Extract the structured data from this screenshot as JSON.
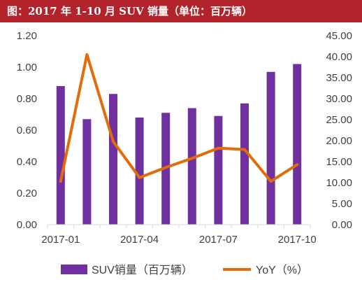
{
  "title": "图：2017 年 1-10 月 SUV 销量（单位：百万辆）",
  "chart_data": {
    "type": "bar+line",
    "categories": [
      "2017-01",
      "2017-02",
      "2017-03",
      "2017-04",
      "2017-05",
      "2017-06",
      "2017-07",
      "2017-08",
      "2017-09",
      "2017-10"
    ],
    "x_tick_labels": [
      "2017-01",
      "2017-04",
      "2017-07",
      "2017-10"
    ],
    "series": [
      {
        "name": "SUV销量（百万辆）",
        "type": "bar",
        "axis": "left",
        "values": [
          0.88,
          0.67,
          0.83,
          0.68,
          0.71,
          0.74,
          0.69,
          0.77,
          0.97,
          1.02
        ]
      },
      {
        "name": "YoY（%）",
        "type": "line",
        "axis": "right",
        "values": [
          10.3,
          40.5,
          19.8,
          11.2,
          13.6,
          15.8,
          18.2,
          17.9,
          10.3,
          14.3
        ]
      }
    ],
    "y_left": {
      "min": 0,
      "max": 1.2,
      "step": 0.2,
      "tick_labels": [
        "0.00",
        "0.20",
        "0.40",
        "0.60",
        "0.80",
        "1.00",
        "1.20"
      ]
    },
    "y_right": {
      "min": 0,
      "max": 45,
      "step": 5,
      "tick_labels": [
        "0.00",
        "5.00",
        "10.00",
        "15.00",
        "20.00",
        "25.00",
        "30.00",
        "35.00",
        "40.00",
        "45.00"
      ]
    },
    "colors": {
      "bar": "#7030a0",
      "line": "#e36c0a",
      "title_bg": "#b3232b",
      "axis": "#d9d9d9"
    },
    "legend": "bottom"
  }
}
